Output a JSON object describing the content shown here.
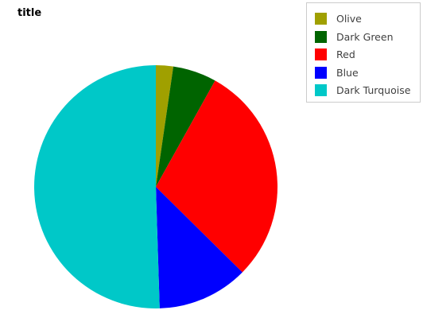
{
  "chart_data": {
    "type": "pie",
    "title": "title",
    "categories": [
      "Olive",
      "Dark Green",
      "Red",
      "Blue",
      "Dark Turquoise"
    ],
    "values": [
      2.3,
      5.8,
      29.3,
      12.1,
      50.5
    ],
    "colors": [
      "#a0a000",
      "#006400",
      "#ff0000",
      "#0000ff",
      "#00c8c8"
    ],
    "legend_position": "top-right"
  }
}
